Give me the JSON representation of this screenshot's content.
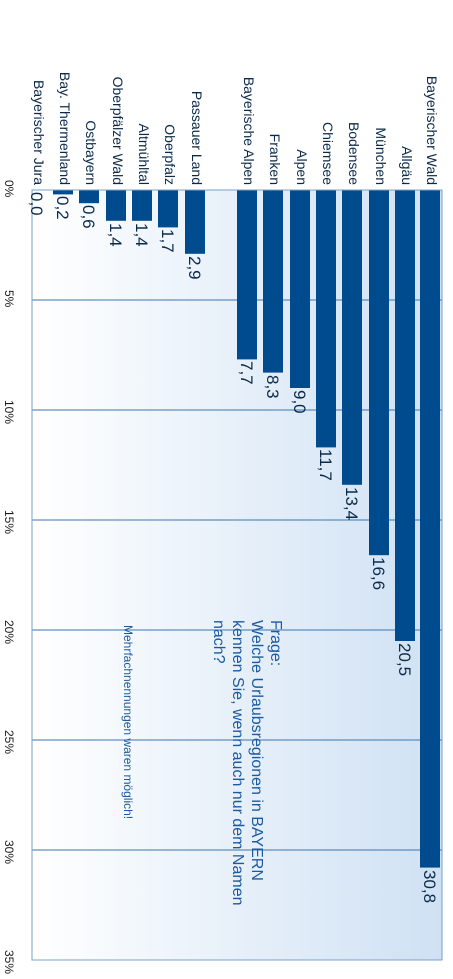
{
  "chart_data": {
    "type": "bar",
    "orientation": "horizontal",
    "categories": [
      "Bayerischer Wald",
      "Allgäu",
      "München",
      "Bodensee",
      "Chiemsee",
      "Alpen",
      "Franken",
      "Bayerische Alpen",
      "Passauer Land",
      "Oberpfalz",
      "Altmühltal",
      "Oberpfälzer Wald",
      "Ostbayern",
      "Bay. Thermenland",
      "Bayerischer Jura"
    ],
    "values": [
      30.8,
      20.5,
      16.6,
      13.4,
      11.7,
      9.0,
      8.3,
      7.7,
      2.9,
      1.7,
      1.4,
      1.4,
      0.6,
      0.2,
      0.0
    ],
    "value_labels": [
      "30,8",
      "20,5",
      "16,6",
      "13,4",
      "11,7",
      "9,0",
      "8,3",
      "7,7",
      "2,9",
      "1,7",
      "1,4",
      "1,4",
      "0,6",
      "0,2",
      "0,0"
    ],
    "xlim": [
      0,
      35
    ],
    "ticks": [
      0,
      5,
      10,
      15,
      20,
      25,
      30,
      35
    ],
    "tick_labels": [
      "0%",
      "5%",
      "10%",
      "15%",
      "20%",
      "25%",
      "30%",
      "35%"
    ],
    "grid": true,
    "bar_color": "#004b8d",
    "background_gradient": [
      "#ffffff",
      "#cfe1f4"
    ]
  },
  "question": {
    "label": "Frage:",
    "text": "Welche Urlaubsregionen in BAYERN kennen Sie, wenn auch nur dem Namen nach?"
  },
  "note": "Mehrfachnennungen waren möglich!"
}
